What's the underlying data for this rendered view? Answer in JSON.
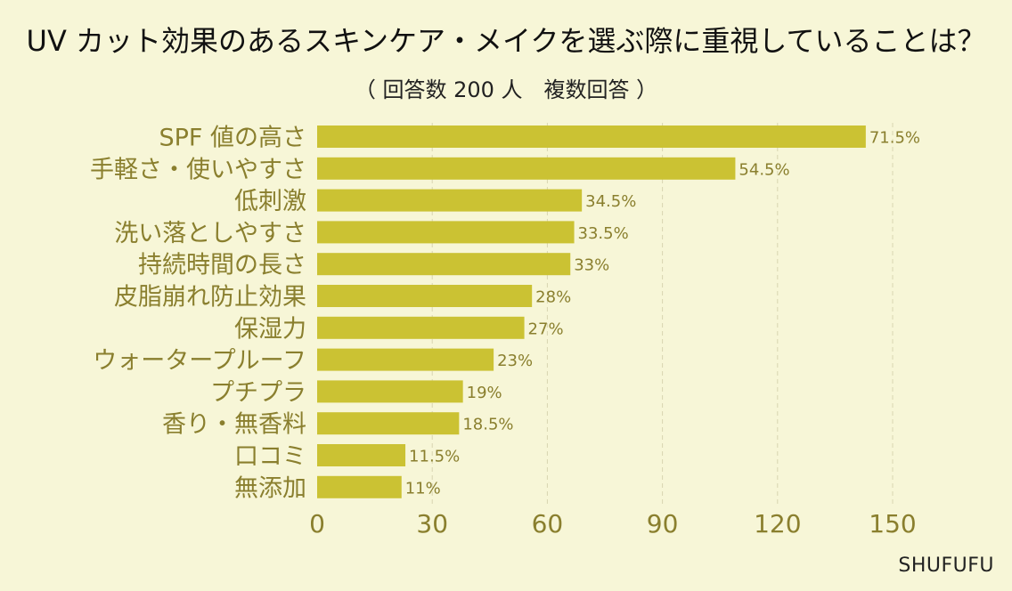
{
  "title": "UV カット効果のあるスキンケア・メイクを選ぶ際に重視していることは？",
  "subtitle": "（ 回答数 200 人　複数回答 ）",
  "source": "SHUFUFU",
  "colors": {
    "bar": "#cbc233",
    "axis_text": "#8a7f2e",
    "background": "#f7f6d7",
    "grid": "#d8d5b0"
  },
  "chart_data": {
    "type": "bar",
    "orientation": "horizontal",
    "title": "UV カット効果のあるスキンケア・メイクを選ぶ際に重視していることは？",
    "subtitle": "（ 回答数 200 人　複数回答 ）",
    "categories": [
      "SPF 値の高さ",
      "手軽さ・使いやすさ",
      "低刺激",
      "洗い落としやすさ",
      "持続時間の長さ",
      "皮脂崩れ防止効果",
      "保湿力",
      "ウォータープルーフ",
      "プチプラ",
      "香り・無香料",
      "口コミ",
      "無添加"
    ],
    "values": [
      143,
      109,
      69,
      67,
      66,
      56,
      54,
      46,
      38,
      37,
      23,
      22
    ],
    "data_labels": [
      "71.5%",
      "54.5%",
      "34.5%",
      "33.5%",
      "33%",
      "28%",
      "27%",
      "23%",
      "19%",
      "18.5%",
      "11.5%",
      "11%"
    ],
    "xlim": [
      0,
      150
    ],
    "xticks": [
      "0",
      "30",
      "60",
      "90",
      "120",
      "150"
    ],
    "xtick_values": [
      0,
      30,
      60,
      90,
      120,
      150
    ],
    "grid": "vertical-dashed",
    "legend": "none"
  }
}
